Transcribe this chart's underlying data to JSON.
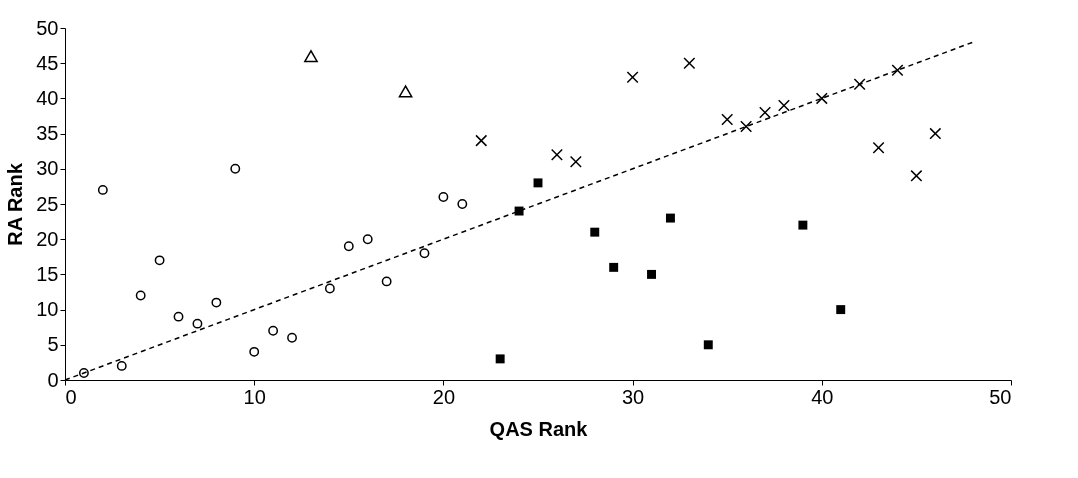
{
  "chart_data": {
    "type": "scatter",
    "xlabel": "QAS Rank",
    "ylabel": "RA Rank",
    "xlim": [
      0,
      50
    ],
    "xticks": [
      0,
      10,
      20,
      30,
      40,
      50
    ],
    "ylim": [
      0,
      50
    ],
    "yticks": [
      0,
      5,
      10,
      15,
      20,
      25,
      30,
      35,
      40,
      45,
      50
    ],
    "grid": false,
    "series": [
      {
        "color": "#000000",
        "marker": "circle",
        "x": [
          1,
          2,
          3,
          4,
          5,
          6,
          7,
          8,
          9,
          10,
          11,
          12,
          14,
          15,
          16,
          17,
          19,
          20,
          21
        ],
        "values": [
          1,
          27,
          2,
          12,
          17,
          9,
          8,
          11,
          30,
          4,
          7,
          6,
          13,
          19,
          20,
          14,
          18,
          26,
          25
        ]
      },
      {
        "color": "#000000",
        "marker": "triangle",
        "x": [
          13,
          18
        ],
        "values": [
          46,
          41
        ]
      },
      {
        "color": "#000000",
        "marker": "cross",
        "x": [
          22,
          26,
          27,
          30,
          33,
          35,
          36,
          37,
          38,
          40,
          42,
          43,
          44,
          45,
          46
        ],
        "values": [
          34,
          32,
          31,
          43,
          45,
          37,
          36,
          38,
          39,
          40,
          42,
          33,
          44,
          29,
          35
        ]
      },
      {
        "color": "#000000",
        "marker": "square",
        "x": [
          23,
          24,
          25,
          28,
          29,
          31,
          32,
          34,
          39,
          41
        ],
        "values": [
          3,
          24,
          28,
          21,
          16,
          15,
          23,
          5,
          22,
          10
        ]
      },
      {
        "type": "line",
        "color": "#000000",
        "marker": "none",
        "line_style": "dashed",
        "x": [
          0,
          48
        ],
        "values": [
          0,
          48
        ]
      }
    ]
  }
}
